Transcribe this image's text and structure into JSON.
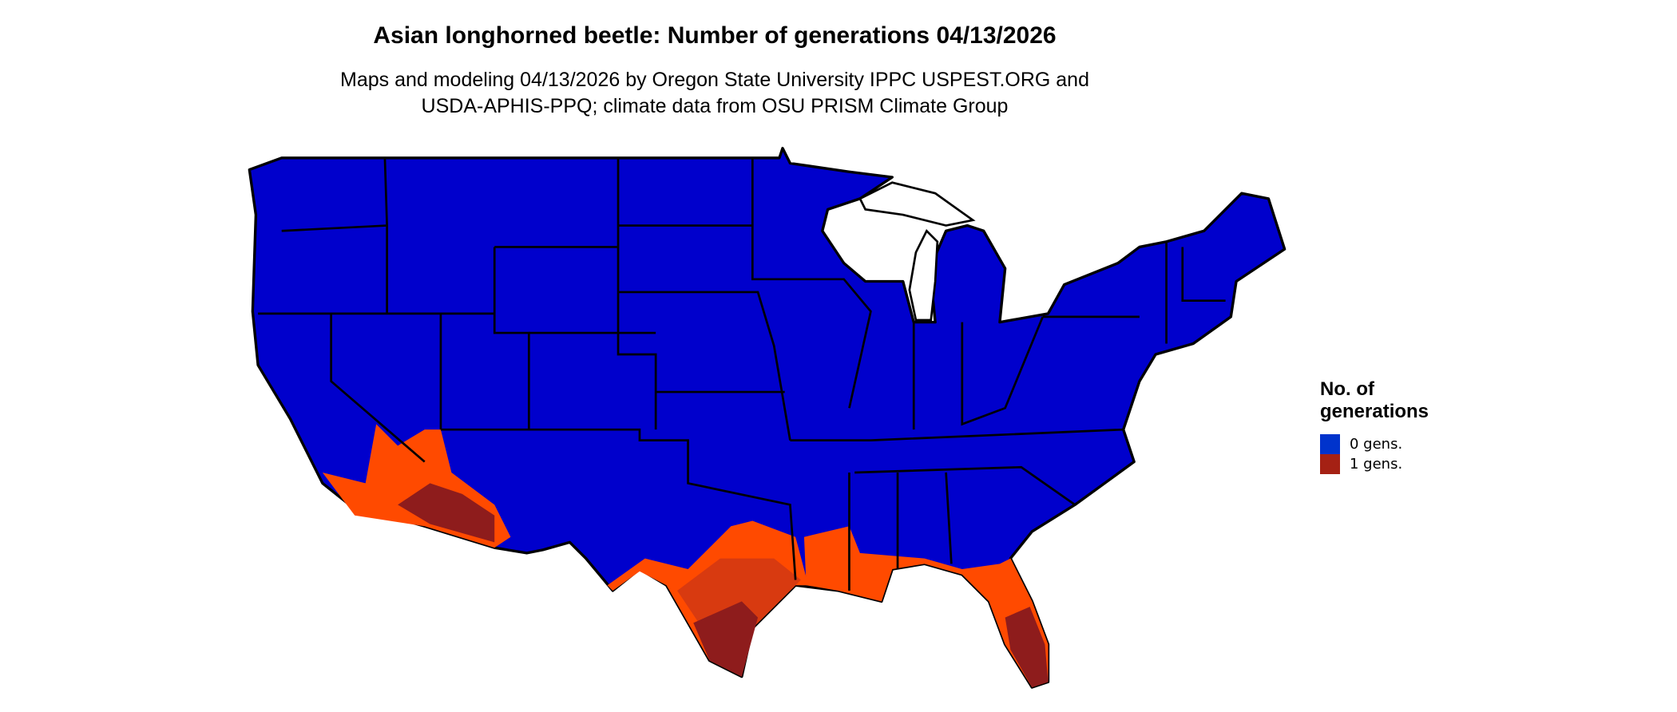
{
  "title": "Asian longhorned beetle: Number of generations 04/13/2026",
  "subtitle_line1": "Maps and modeling 04/13/2026 by Oregon State University IPPC USPEST.ORG and",
  "subtitle_line2": "USDA-APHIS-PPQ; climate data from OSU PRISM Climate Group",
  "legend": {
    "title": "No. of\ngenerations",
    "items": [
      {
        "label": "0 gens.",
        "color": "#0033cc"
      },
      {
        "label": "1 gens.",
        "color": "#a52114"
      }
    ]
  },
  "map_colors": {
    "zero_generations": "#0000cc",
    "partial_low": "#ff4a00",
    "partial_mid": "#d83a10",
    "partial_high": "#8e1c1c",
    "border": "#000000"
  }
}
